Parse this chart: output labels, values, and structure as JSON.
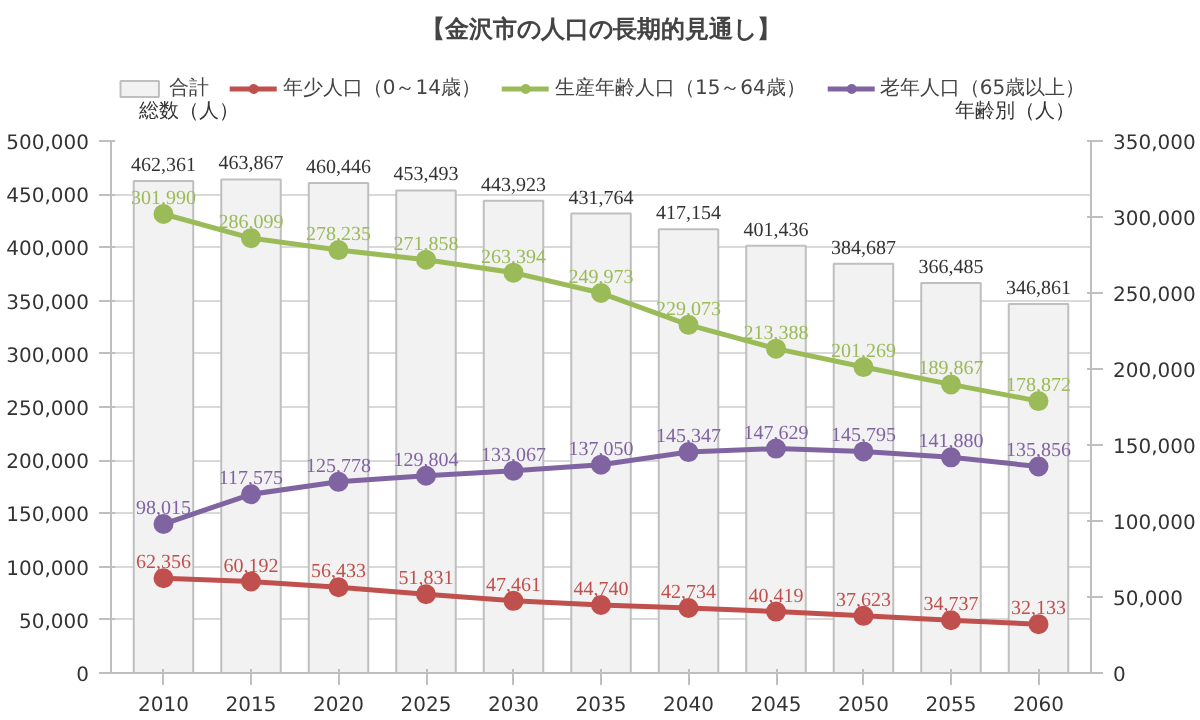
{
  "chart_data": {
    "type": "bar",
    "title": "【金沢市の人口の長期的見通し】",
    "ylabel": "総数（人）",
    "y2label": "年齢別（人）",
    "categories": [
      "2010",
      "2015",
      "2020",
      "2025",
      "2030",
      "2035",
      "2040",
      "2045",
      "2050",
      "2055",
      "2060"
    ],
    "series": [
      {
        "name": "合計",
        "color": "#f2f2f2",
        "values": [
          462361,
          463867,
          460446,
          453493,
          443923,
          431764,
          417154,
          401436,
          384687,
          366485,
          346861
        ],
        "value_labels": [
          "462,361",
          "463,867",
          "460,446",
          "453,493",
          "443,923",
          "431,764",
          "417,154",
          "401,436",
          "384,687",
          "366,485",
          "346,861"
        ]
      },
      {
        "name": "年少人口（0～14歳）",
        "type": "line",
        "axis": "y2",
        "color": "#c0504d",
        "values": [
          62356,
          60192,
          56433,
          51831,
          47461,
          44740,
          42734,
          40419,
          37623,
          34737,
          32133
        ],
        "value_labels": [
          "62,356",
          "60,192",
          "56,433",
          "51,831",
          "47,461",
          "44,740",
          "42,734",
          "40,419",
          "37,623",
          "34,737",
          "32,133"
        ]
      },
      {
        "name": "生産年齢人口（15～64歳）",
        "type": "line",
        "axis": "y2",
        "color": "#9bbb59",
        "values": [
          301990,
          286099,
          278235,
          271858,
          263394,
          249973,
          229073,
          213388,
          201269,
          189867,
          178872
        ],
        "value_labels": [
          "301,990",
          "286,099",
          "278,235",
          "271,858",
          "263,394",
          "249,973",
          "229,073",
          "213,388",
          "201,269",
          "189,867",
          "178,872"
        ]
      },
      {
        "name": "老年人口（65歳以上）",
        "type": "line",
        "axis": "y2",
        "color": "#8064a2",
        "values": [
          98015,
          117575,
          125778,
          129804,
          133067,
          137050,
          145347,
          147629,
          145795,
          141880,
          135856
        ],
        "value_labels": [
          "98,015",
          "117,575",
          "125,778",
          "129,804",
          "133,067",
          "137,050",
          "145,347",
          "147,629",
          "145,795",
          "141,880",
          "135,856"
        ]
      }
    ],
    "ylim": [
      0,
      500000
    ],
    "yticks": [
      0,
      {
        "value": 50000,
        "label": "50,000"
      },
      {
        "value": 100000,
        "label": "100,000"
      },
      {
        "value": 150000,
        "label": "150,000"
      },
      {
        "value": 200000,
        "label": "200,000"
      },
      {
        "value": 250000,
        "label": "250,000"
      },
      {
        "value": 300000,
        "label": "300,000"
      },
      {
        "value": 350000,
        "label": "350,000"
      },
      {
        "value": 400000,
        "label": "400,000"
      },
      {
        "value": 450000,
        "label": "450,000"
      },
      {
        "value": 500000,
        "label": "500,000"
      }
    ],
    "y2lim": [
      0,
      350000
    ],
    "y2ticks": [
      0,
      {
        "value": 50000,
        "label": "50,000"
      },
      {
        "value": 100000,
        "label": "100,000"
      },
      {
        "value": 150000,
        "label": "150,000"
      },
      {
        "value": 200000,
        "label": "200,000"
      },
      {
        "value": 250000,
        "label": "250,000"
      },
      {
        "value": 300000,
        "label": "300,000"
      },
      {
        "value": 350000,
        "label": "350,000"
      }
    ],
    "grid": "y",
    "legend": "top",
    "marker": "circle"
  }
}
